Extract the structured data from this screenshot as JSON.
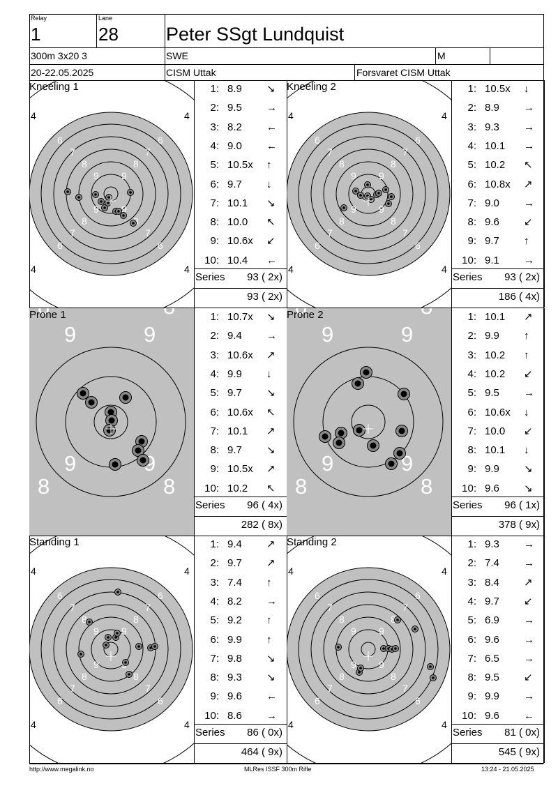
{
  "header": {
    "relay_label": "Relay",
    "relay_value": "1",
    "lane_label": "Lane",
    "lane_value": "28",
    "shooter_name": "Peter SSgt Lundquist",
    "event": "300m 3x20 3",
    "nation": "SWE",
    "gender": "M",
    "dates": "20-22.05.2025",
    "competition": "CISM Uttak",
    "club": "Forsvaret CISM Uttak"
  },
  "series_label": "Series",
  "series": [
    {
      "title": "Kneeling 1",
      "target_type": "kneeling",
      "shots": [
        {
          "n": "1:",
          "v": "8.9",
          "dir": "↘"
        },
        {
          "n": "2:",
          "v": "9.5",
          "dir": "→"
        },
        {
          "n": "3:",
          "v": "8.2",
          "dir": "←"
        },
        {
          "n": "4:",
          "v": "9.0",
          "dir": "←"
        },
        {
          "n": "5:",
          "v": "10.5x",
          "dir": "↑"
        },
        {
          "n": "6:",
          "v": "9.7",
          "dir": "↓"
        },
        {
          "n": "7:",
          "v": "10.1",
          "dir": "↘"
        },
        {
          "n": "8:",
          "v": "10.0",
          "dir": "↖"
        },
        {
          "n": "9:",
          "v": "10.6x",
          "dir": "↙"
        },
        {
          "n": "10:",
          "v": "10.4",
          "dir": "←"
        }
      ],
      "series_total": "93 ( 2x)",
      "running_total": "93 ( 2x)"
    },
    {
      "title": "Kneeling 2",
      "target_type": "kneeling",
      "shots": [
        {
          "n": "1:",
          "v": "10.5x",
          "dir": "↓"
        },
        {
          "n": "2:",
          "v": "8.9",
          "dir": "→"
        },
        {
          "n": "3:",
          "v": "9.3",
          "dir": "→"
        },
        {
          "n": "4:",
          "v": "10.1",
          "dir": "→"
        },
        {
          "n": "5:",
          "v": "10.2",
          "dir": "↖"
        },
        {
          "n": "6:",
          "v": "10.8x",
          "dir": "↗"
        },
        {
          "n": "7:",
          "v": "9.0",
          "dir": "→"
        },
        {
          "n": "8:",
          "v": "9.6",
          "dir": "↙"
        },
        {
          "n": "9:",
          "v": "9.7",
          "dir": "↑"
        },
        {
          "n": "10:",
          "v": "9.1",
          "dir": "→"
        }
      ],
      "series_total": "93 ( 2x)",
      "running_total": "186 ( 4x)"
    },
    {
      "title": "Prone 1",
      "target_type": "prone",
      "shots": [
        {
          "n": "1:",
          "v": "10.7x",
          "dir": "↘"
        },
        {
          "n": "2:",
          "v": "9.4",
          "dir": "→"
        },
        {
          "n": "3:",
          "v": "10.6x",
          "dir": "↗"
        },
        {
          "n": "4:",
          "v": "9.9",
          "dir": "↓"
        },
        {
          "n": "5:",
          "v": "9.7",
          "dir": "↘"
        },
        {
          "n": "6:",
          "v": "10.6x",
          "dir": "↖"
        },
        {
          "n": "7:",
          "v": "10.1",
          "dir": "↗"
        },
        {
          "n": "8:",
          "v": "9.7",
          "dir": "↘"
        },
        {
          "n": "9:",
          "v": "10.5x",
          "dir": "↗"
        },
        {
          "n": "10:",
          "v": "10.2",
          "dir": "↖"
        }
      ],
      "series_total": "96 ( 4x)",
      "running_total": "282 ( 8x)"
    },
    {
      "title": "Prone 2",
      "target_type": "prone",
      "shots": [
        {
          "n": "1:",
          "v": "10.1",
          "dir": "↗"
        },
        {
          "n": "2:",
          "v": "9.9",
          "dir": "↑"
        },
        {
          "n": "3:",
          "v": "10.2",
          "dir": "↑"
        },
        {
          "n": "4:",
          "v": "10.2",
          "dir": "↙"
        },
        {
          "n": "5:",
          "v": "9.5",
          "dir": "→"
        },
        {
          "n": "6:",
          "v": "10.6x",
          "dir": "↓"
        },
        {
          "n": "7:",
          "v": "10.0",
          "dir": "↙"
        },
        {
          "n": "8:",
          "v": "10.1",
          "dir": "↓"
        },
        {
          "n": "9:",
          "v": "9.9",
          "dir": "↘"
        },
        {
          "n": "10:",
          "v": "9.6",
          "dir": "↘"
        }
      ],
      "series_total": "96 ( 1x)",
      "running_total": "378 ( 9x)"
    },
    {
      "title": "Standing 1",
      "target_type": "kneeling",
      "shots": [
        {
          "n": "1:",
          "v": "9.4",
          "dir": "↗"
        },
        {
          "n": "2:",
          "v": "9.7",
          "dir": "↗"
        },
        {
          "n": "3:",
          "v": "7.4",
          "dir": "↑"
        },
        {
          "n": "4:",
          "v": "8.2",
          "dir": "→"
        },
        {
          "n": "5:",
          "v": "9.2",
          "dir": "↑"
        },
        {
          "n": "6:",
          "v": "9.9",
          "dir": "↑"
        },
        {
          "n": "7:",
          "v": "9.8",
          "dir": "↘"
        },
        {
          "n": "8:",
          "v": "9.3",
          "dir": "↘"
        },
        {
          "n": "9:",
          "v": "9.6",
          "dir": "←"
        },
        {
          "n": "10:",
          "v": "8.6",
          "dir": "→"
        }
      ],
      "series_total": "86 ( 0x)",
      "running_total": "464 ( 9x)"
    },
    {
      "title": "Standing 2",
      "target_type": "kneeling",
      "shots": [
        {
          "n": "1:",
          "v": "9.3",
          "dir": "→"
        },
        {
          "n": "2:",
          "v": "7.4",
          "dir": "→"
        },
        {
          "n": "3:",
          "v": "8.4",
          "dir": "↗"
        },
        {
          "n": "4:",
          "v": "9.7",
          "dir": "↙"
        },
        {
          "n": "5:",
          "v": "6.9",
          "dir": "→"
        },
        {
          "n": "6:",
          "v": "9.6",
          "dir": "→"
        },
        {
          "n": "7:",
          "v": "6.5",
          "dir": "→"
        },
        {
          "n": "8:",
          "v": "9.5",
          "dir": "↙"
        },
        {
          "n": "9:",
          "v": "9.9",
          "dir": "→"
        },
        {
          "n": "10:",
          "v": "9.6",
          "dir": "←"
        }
      ],
      "series_total": "81 ( 0x)",
      "running_total": "545 ( 9x)"
    }
  ],
  "footer": {
    "url": "http://www.megalink.no",
    "software": "MLRes ISSF 300m Rifle",
    "timestamp": "13:24 - 21.05.2025"
  },
  "colors": {
    "target_gray": "#c0c0c0",
    "line": "#000000"
  }
}
